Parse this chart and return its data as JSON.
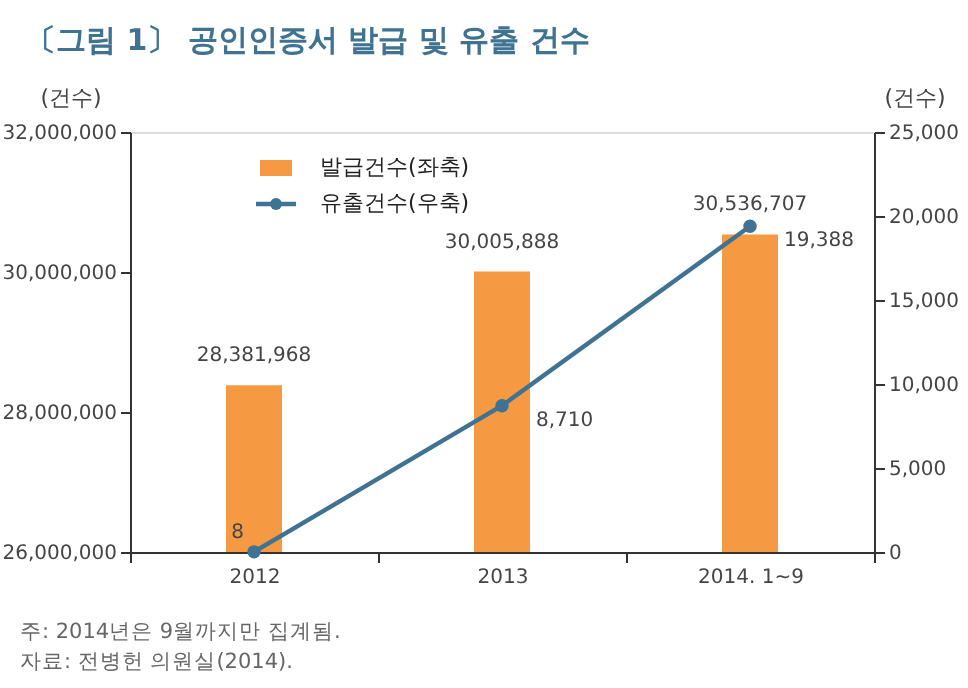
{
  "chart_data": {
    "type": "bar",
    "title": "〔그림 1〕 공인인증서 발급 및 유출 건수",
    "categories": [
      "2012",
      "2013",
      "2014. 1~9"
    ],
    "series": [
      {
        "name": "발급건수(좌축)",
        "color": "#f59a43",
        "values": [
          28381968,
          30005888,
          30536707
        ],
        "value_labels": [
          "28,381,968",
          "30,005,888",
          "30,536,707"
        ]
      },
      {
        "name": "유출건수(우축)",
        "type": "line",
        "axis": "y2",
        "color": "#3f7391",
        "marker": "circle",
        "values": [
          8,
          8710,
          19388
        ],
        "value_labels": [
          "8",
          "8,710",
          "19,388"
        ]
      }
    ],
    "ylabel": "(건수)",
    "y2label": "(건수)",
    "ylim": [
      26000000,
      32000000
    ],
    "yticks": [
      {
        "value": 26000000,
        "label": "26,000,000"
      },
      {
        "value": 28000000,
        "label": "28,000,000"
      },
      {
        "value": 30000000,
        "label": "30,000,000"
      },
      {
        "value": 32000000,
        "label": "32,000,000"
      }
    ],
    "y2lim": [
      0,
      25000
    ],
    "y2ticks": [
      0,
      {
        "value": 5000,
        "label": "5,000"
      },
      {
        "value": 10000,
        "label": "10,000"
      },
      {
        "value": 15000,
        "label": "15,000"
      },
      {
        "value": 20000,
        "label": "20,000"
      },
      {
        "value": 25000,
        "label": "25,000"
      }
    ],
    "legend": "top left",
    "grid": false,
    "annotations": [
      "주: 2014년은 9월까지만 집계됨.",
      "자료: 전병헌 의원실(2014)."
    ]
  }
}
